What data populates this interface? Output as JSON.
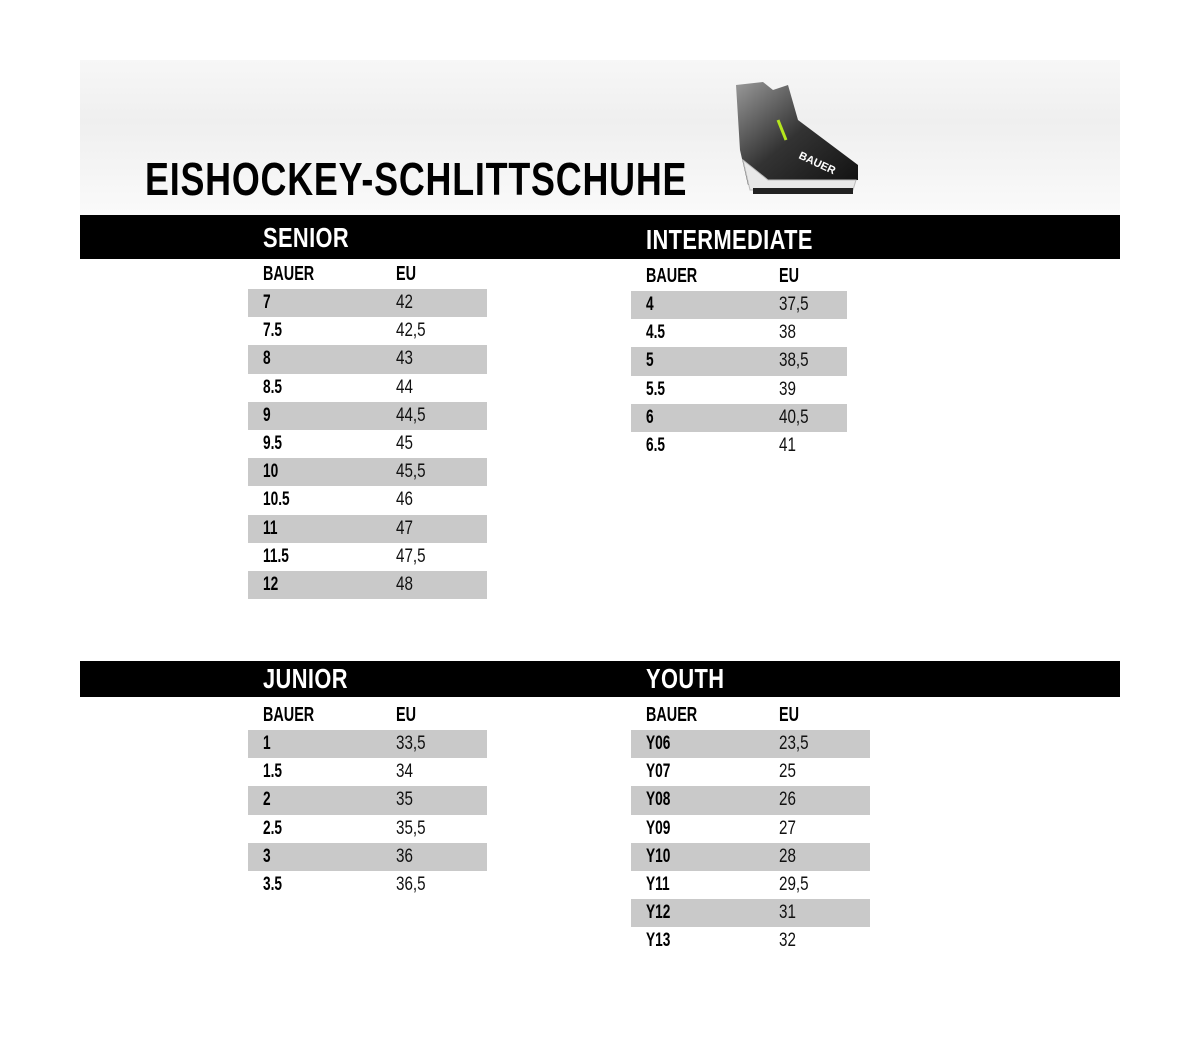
{
  "title": "EISHOCKEY-SCHLITTSCHUHE",
  "product_image": {
    "brand_text": "BAUER",
    "icon": "ice-skate-image"
  },
  "sections": [
    {
      "id": "senior",
      "title": "SENIOR",
      "headers": [
        "BAUER",
        "EU"
      ],
      "rows": [
        [
          "7",
          "42"
        ],
        [
          "7.5",
          "42,5"
        ],
        [
          "8",
          "43"
        ],
        [
          "8.5",
          "44"
        ],
        [
          "9",
          "44,5"
        ],
        [
          "9.5",
          "45"
        ],
        [
          "10",
          "45,5"
        ],
        [
          "10.5",
          "46"
        ],
        [
          "11",
          "47"
        ],
        [
          "11.5",
          "47,5"
        ],
        [
          "12",
          "48"
        ]
      ]
    },
    {
      "id": "intermediate",
      "title": "INTERMEDIATE",
      "headers": [
        "BAUER",
        "EU"
      ],
      "rows": [
        [
          "4",
          "37,5"
        ],
        [
          "4.5",
          "38"
        ],
        [
          "5",
          "38,5"
        ],
        [
          "5.5",
          "39"
        ],
        [
          "6",
          "40,5"
        ],
        [
          "6.5",
          "41"
        ]
      ]
    },
    {
      "id": "junior",
      "title": "JUNIOR",
      "headers": [
        "BAUER",
        "EU"
      ],
      "rows": [
        [
          "1",
          "33,5"
        ],
        [
          "1.5",
          "34"
        ],
        [
          "2",
          "35"
        ],
        [
          "2.5",
          "35,5"
        ],
        [
          "3",
          "36"
        ],
        [
          "3.5",
          "36,5"
        ]
      ]
    },
    {
      "id": "youth",
      "title": "YOUTH",
      "headers": [
        "BAUER",
        "EU"
      ],
      "rows": [
        [
          "Y06",
          "23,5"
        ],
        [
          "Y07",
          "25"
        ],
        [
          "Y08",
          "26"
        ],
        [
          "Y09",
          "27"
        ],
        [
          "Y10",
          "28"
        ],
        [
          "Y11",
          "29,5"
        ],
        [
          "Y12",
          "31"
        ],
        [
          "Y13",
          "32"
        ]
      ]
    }
  ],
  "colors": {
    "band": "#000000",
    "row_stripe": "#c9c9c9",
    "text": "#000000"
  }
}
